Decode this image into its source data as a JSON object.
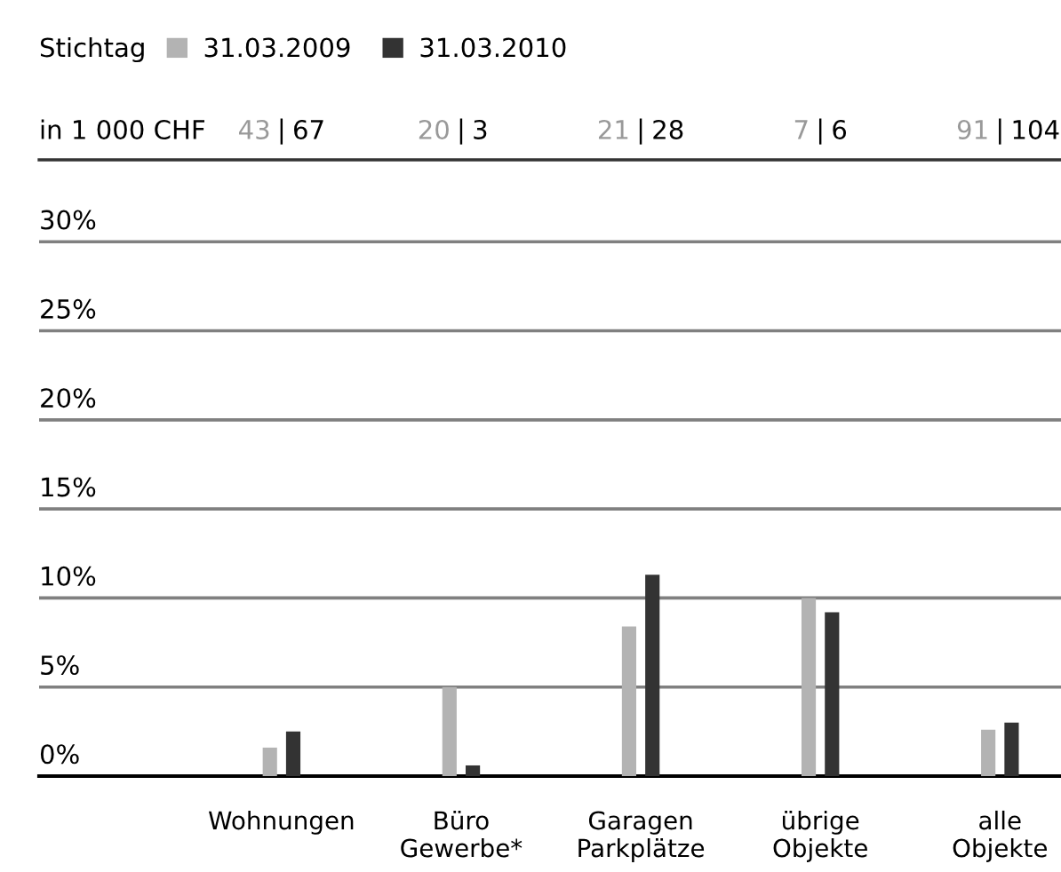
{
  "chart_data": {
    "type": "bar",
    "legend_title": "Stichtag",
    "categories": [
      "Wohnungen",
      "Büro\nGewerbe*",
      "Garagen\nParkplätze",
      "übrige\nObjekte",
      "alle\nObjekte"
    ],
    "series": [
      {
        "name": "31.03.2009",
        "color": "#b3b3b3",
        "values": [
          1.6,
          5.0,
          8.4,
          10.0,
          2.6
        ]
      },
      {
        "name": "31.03.2010",
        "color": "#333333",
        "values": [
          2.5,
          0.6,
          11.3,
          9.2,
          3.0
        ]
      }
    ],
    "ylim": [
      0,
      34.6
    ],
    "yticks": [
      {
        "value": 0,
        "label": "0%"
      },
      {
        "value": 5,
        "label": "5%"
      },
      {
        "value": 10,
        "label": "10%"
      },
      {
        "value": 15,
        "label": "15%"
      },
      {
        "value": 20,
        "label": "20%"
      },
      {
        "value": 25,
        "label": "25%"
      },
      {
        "value": 30,
        "label": "30%"
      }
    ],
    "grid": "y",
    "legend": "top left",
    "annotations": [
      "in 1 000 CHF",
      "43",
      "|",
      "67",
      "20",
      "|",
      "3",
      "21",
      "|",
      "28",
      "7",
      "|",
      "6",
      "91",
      "|",
      "104"
    ]
  }
}
